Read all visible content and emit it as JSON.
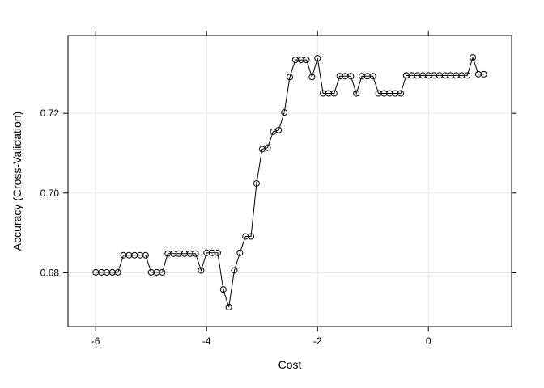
{
  "chart_data": {
    "type": "line",
    "xlabel": "Cost",
    "ylabel": "Accuracy (Cross-Validation)",
    "xlim": [
      -6.5,
      1.5
    ],
    "ylim": [
      0.6665,
      0.7395
    ],
    "xticks": [
      -6,
      -4,
      -2,
      0
    ],
    "xtick_labels": [
      "-6",
      "-4",
      "-2",
      "0"
    ],
    "yticks": [
      0.68,
      0.7,
      0.72
    ],
    "ytick_labels": [
      "0.68",
      "0.70",
      "0.72"
    ],
    "grid": true,
    "marker": "open-circle",
    "series": [
      {
        "x": [
          -6.0,
          -5.9,
          -5.8,
          -5.7,
          -5.6,
          -5.5,
          -5.4,
          -5.3,
          -5.2,
          -5.1,
          -5.0,
          -4.9,
          -4.8,
          -4.7,
          -4.6,
          -4.5,
          -4.4,
          -4.3,
          -4.2,
          -4.1,
          -4.0,
          -3.9,
          -3.8,
          -3.7,
          -3.6,
          -3.5,
          -3.4,
          -3.3,
          -3.2,
          -3.1,
          -3.0,
          -2.9,
          -2.8,
          -2.7,
          -2.6,
          -2.5,
          -2.4,
          -2.3,
          -2.2,
          -2.1,
          -2.0,
          -1.9,
          -1.8,
          -1.7,
          -1.6,
          -1.5,
          -1.4,
          -1.3,
          -1.2,
          -1.1,
          -1.0,
          -0.9,
          -0.8,
          -0.7,
          -0.6,
          -0.5,
          -0.4,
          -0.3,
          -0.2,
          -0.1,
          0.0,
          0.1,
          0.2,
          0.3,
          0.4,
          0.5,
          0.6,
          0.7,
          0.8,
          0.9,
          1.0
        ],
        "y": [
          0.6801,
          0.6801,
          0.6801,
          0.6801,
          0.6801,
          0.6844,
          0.6844,
          0.6844,
          0.6844,
          0.6844,
          0.6801,
          0.6801,
          0.6801,
          0.6848,
          0.6848,
          0.6848,
          0.6848,
          0.6848,
          0.6848,
          0.6806,
          0.685,
          0.685,
          0.685,
          0.6758,
          0.6714,
          0.6806,
          0.685,
          0.6891,
          0.6891,
          0.7024,
          0.711,
          0.7114,
          0.7154,
          0.7158,
          0.7202,
          0.7291,
          0.7334,
          0.7334,
          0.7334,
          0.7291,
          0.7338,
          0.725,
          0.725,
          0.725,
          0.7293,
          0.7293,
          0.7293,
          0.725,
          0.7293,
          0.7293,
          0.7293,
          0.725,
          0.725,
          0.725,
          0.725,
          0.725,
          0.7295,
          0.7295,
          0.7295,
          0.7295,
          0.7295,
          0.7295,
          0.7295,
          0.7295,
          0.7295,
          0.7295,
          0.7295,
          0.7295,
          0.734,
          0.7298,
          0.7298
        ]
      }
    ]
  }
}
